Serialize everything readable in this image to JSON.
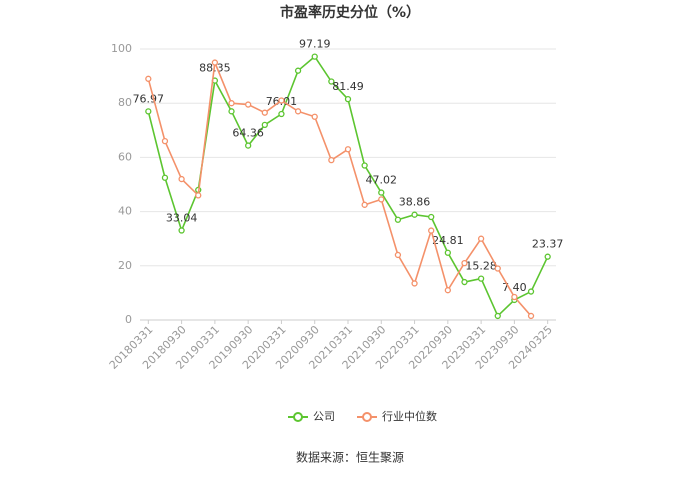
{
  "chart_data": {
    "type": "line",
    "title": "市盈率历史分位（%）",
    "categories": [
      "20180331",
      null,
      "20180930",
      null,
      "20190331",
      null,
      "20190930",
      null,
      "20200331",
      null,
      "20200930",
      null,
      "20210331",
      null,
      "20210930",
      null,
      "20220331",
      null,
      "20220930",
      null,
      "20230331",
      null,
      "20230930",
      null,
      "20240325"
    ],
    "series": [
      {
        "name": "公司",
        "color": "#5cc530",
        "values": [
          76.97,
          52.5,
          33.04,
          48,
          88.35,
          77,
          64.36,
          72,
          76.01,
          92,
          97.19,
          88,
          81.49,
          57,
          47.02,
          37,
          38.86,
          38,
          24.81,
          14,
          15.28,
          1.5,
          7.4,
          10.5,
          23.37
        ],
        "value_labels": [
          "76.97",
          null,
          "33.04",
          null,
          "88.35",
          null,
          "64.36",
          null,
          "76.01",
          null,
          "97.19",
          null,
          "81.49",
          null,
          "47.02",
          null,
          "38.86",
          null,
          "24.81",
          null,
          "15.28",
          null,
          "7.40",
          null,
          "23.37"
        ]
      },
      {
        "name": "行业中位数",
        "color": "#f4916a",
        "values": [
          89,
          66,
          52,
          46,
          95,
          80,
          79.5,
          76.5,
          81,
          77,
          75,
          59,
          63,
          42.5,
          44.5,
          24,
          13.5,
          33,
          11,
          21,
          30,
          19,
          8.5,
          1.5,
          null
        ]
      }
    ],
    "ylim": [
      0,
      100
    ],
    "yticks": [
      0,
      20,
      40,
      60,
      80,
      100
    ],
    "grid": true,
    "source": "数据来源：恒生聚源"
  }
}
